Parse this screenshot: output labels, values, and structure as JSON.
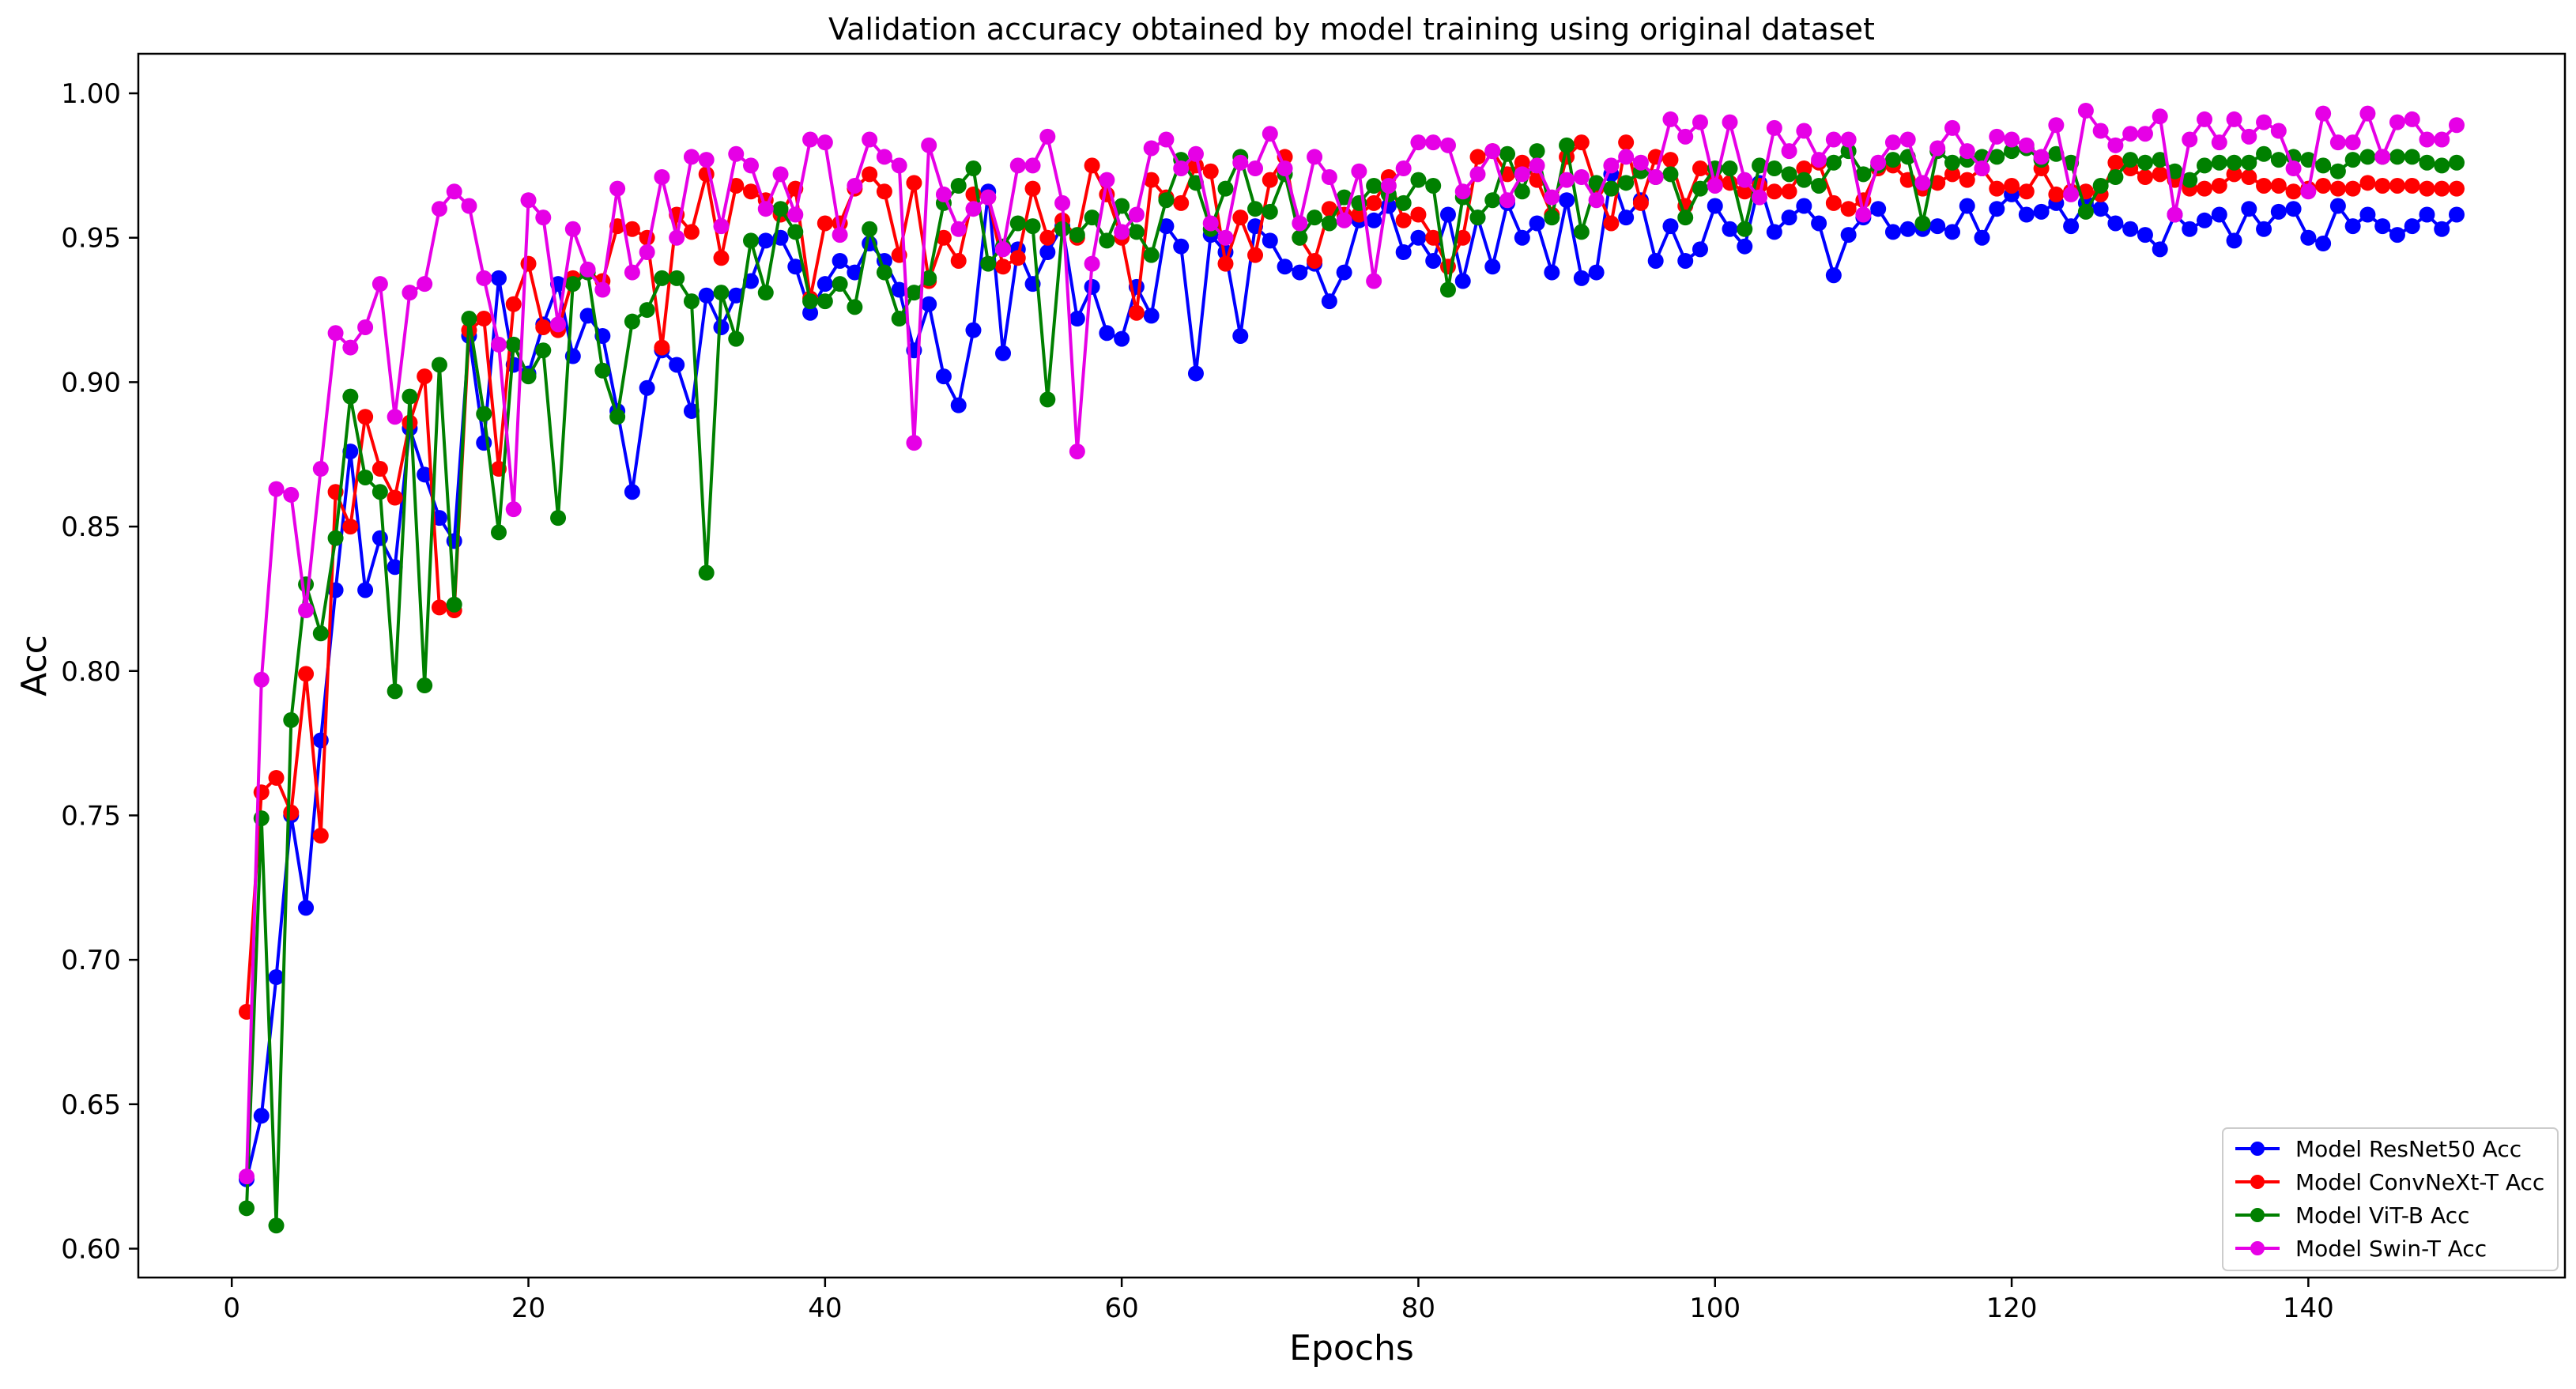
{
  "chart_data": {
    "type": "line",
    "title": "Validation accuracy obtained by model training using original dataset",
    "xlabel": "Epochs",
    "ylabel": "Acc",
    "xlim": [
      -6.3,
      157.3
    ],
    "ylim": [
      0.59,
      1.0137
    ],
    "x_ticks": [
      0,
      20,
      40,
      60,
      80,
      100,
      120,
      140
    ],
    "x_tick_labels": [
      "0",
      "20",
      "40",
      "60",
      "80",
      "100",
      "120",
      "140"
    ],
    "y_ticks": [
      0.6,
      0.65,
      0.7,
      0.75,
      0.8,
      0.85,
      0.9,
      0.95,
      1.0
    ],
    "y_tick_labels": [
      "0.60",
      "0.65",
      "0.70",
      "0.75",
      "0.80",
      "0.85",
      "0.90",
      "0.95",
      "1.00"
    ],
    "grid": false,
    "legend_position": "bottom-right",
    "x_start": 1,
    "series": [
      {
        "name": "Model ResNet50  Acc",
        "color": "#0000ff",
        "values": [
          0.624,
          0.646,
          0.694,
          0.75,
          0.718,
          0.776,
          0.828,
          0.876,
          0.828,
          0.846,
          0.836,
          0.884,
          0.868,
          0.853,
          0.845,
          0.916,
          0.879,
          0.936,
          0.906,
          0.903,
          0.92,
          0.934,
          0.909,
          0.923,
          0.916,
          0.89,
          0.862,
          0.898,
          0.911,
          0.906,
          0.89,
          0.93,
          0.919,
          0.93,
          0.935,
          0.949,
          0.95,
          0.94,
          0.924,
          0.934,
          0.942,
          0.938,
          0.948,
          0.942,
          0.932,
          0.911,
          0.927,
          0.902,
          0.892,
          0.918,
          0.966,
          0.91,
          0.946,
          0.934,
          0.945,
          0.954,
          0.922,
          0.933,
          0.917,
          0.915,
          0.933,
          0.923,
          0.954,
          0.947,
          0.903,
          0.951,
          0.945,
          0.916,
          0.954,
          0.949,
          0.94,
          0.938,
          0.941,
          0.928,
          0.938,
          0.956,
          0.956,
          0.961,
          0.945,
          0.95,
          0.942,
          0.958,
          0.935,
          0.957,
          0.94,
          0.962,
          0.95,
          0.955,
          0.938,
          0.963,
          0.936,
          0.938,
          0.972,
          0.957,
          0.963,
          0.942,
          0.954,
          0.942,
          0.946,
          0.961,
          0.953,
          0.947,
          0.969,
          0.952,
          0.957,
          0.961,
          0.955,
          0.937,
          0.951,
          0.957,
          0.96,
          0.952,
          0.953,
          0.953,
          0.954,
          0.952,
          0.961,
          0.95,
          0.96,
          0.965,
          0.958,
          0.959,
          0.962,
          0.954,
          0.962,
          0.96,
          0.955,
          0.953,
          0.951,
          0.946,
          0.958,
          0.953,
          0.956,
          0.958,
          0.949,
          0.96,
          0.953,
          0.959,
          0.96,
          0.95,
          0.948,
          0.961,
          0.954,
          0.958,
          0.954,
          0.951,
          0.954,
          0.958,
          0.953,
          0.958
        ]
      },
      {
        "name": "Model ConvNeXt-T Acc",
        "color": "#ff0000",
        "values": [
          0.682,
          0.758,
          0.763,
          0.751,
          0.799,
          0.743,
          0.862,
          0.85,
          0.888,
          0.87,
          0.86,
          0.886,
          0.902,
          0.822,
          0.821,
          0.918,
          0.922,
          0.87,
          0.927,
          0.941,
          0.919,
          0.918,
          0.936,
          0.938,
          0.935,
          0.954,
          0.953,
          0.95,
          0.912,
          0.958,
          0.952,
          0.972,
          0.943,
          0.968,
          0.966,
          0.963,
          0.958,
          0.967,
          0.929,
          0.955,
          0.955,
          0.967,
          0.972,
          0.966,
          0.944,
          0.969,
          0.935,
          0.95,
          0.942,
          0.965,
          0.964,
          0.94,
          0.943,
          0.967,
          0.95,
          0.956,
          0.95,
          0.975,
          0.965,
          0.95,
          0.924,
          0.97,
          0.964,
          0.962,
          0.975,
          0.973,
          0.941,
          0.957,
          0.944,
          0.97,
          0.978,
          0.95,
          0.942,
          0.96,
          0.958,
          0.958,
          0.962,
          0.971,
          0.956,
          0.958,
          0.95,
          0.94,
          0.95,
          0.978,
          0.98,
          0.972,
          0.976,
          0.97,
          0.958,
          0.978,
          0.983,
          0.967,
          0.955,
          0.983,
          0.962,
          0.978,
          0.977,
          0.961,
          0.974,
          0.97,
          0.969,
          0.966,
          0.968,
          0.966,
          0.966,
          0.974,
          0.976,
          0.962,
          0.96,
          0.963,
          0.974,
          0.975,
          0.97,
          0.967,
          0.969,
          0.972,
          0.97,
          0.974,
          0.967,
          0.968,
          0.966,
          0.974,
          0.965,
          0.966,
          0.966,
          0.965,
          0.976,
          0.974,
          0.971,
          0.972,
          0.97,
          0.967,
          0.967,
          0.968,
          0.972,
          0.971,
          0.968,
          0.968,
          0.966,
          0.967,
          0.968,
          0.967,
          0.967,
          0.969,
          0.968,
          0.968,
          0.968,
          0.967,
          0.967,
          0.967
        ]
      },
      {
        "name": "Model ViT-B Acc",
        "color": "#008000",
        "values": [
          0.614,
          0.749,
          0.608,
          0.783,
          0.83,
          0.813,
          0.846,
          0.895,
          0.867,
          0.862,
          0.793,
          0.895,
          0.795,
          0.906,
          0.823,
          0.922,
          0.889,
          0.848,
          0.913,
          0.902,
          0.911,
          0.853,
          0.934,
          0.938,
          0.904,
          0.888,
          0.921,
          0.925,
          0.936,
          0.936,
          0.928,
          0.834,
          0.931,
          0.915,
          0.949,
          0.931,
          0.96,
          0.952,
          0.928,
          0.928,
          0.934,
          0.926,
          0.953,
          0.938,
          0.922,
          0.931,
          0.936,
          0.962,
          0.968,
          0.974,
          0.941,
          0.947,
          0.955,
          0.954,
          0.894,
          0.953,
          0.951,
          0.957,
          0.949,
          0.961,
          0.952,
          0.944,
          0.963,
          0.977,
          0.969,
          0.953,
          0.967,
          0.978,
          0.96,
          0.959,
          0.972,
          0.95,
          0.957,
          0.955,
          0.964,
          0.962,
          0.968,
          0.965,
          0.962,
          0.97,
          0.968,
          0.932,
          0.964,
          0.957,
          0.963,
          0.979,
          0.966,
          0.98,
          0.957,
          0.982,
          0.952,
          0.969,
          0.967,
          0.969,
          0.973,
          0.971,
          0.972,
          0.957,
          0.967,
          0.974,
          0.974,
          0.953,
          0.975,
          0.974,
          0.972,
          0.97,
          0.968,
          0.976,
          0.98,
          0.972,
          0.975,
          0.977,
          0.978,
          0.955,
          0.98,
          0.976,
          0.977,
          0.978,
          0.978,
          0.98,
          0.981,
          0.977,
          0.979,
          0.976,
          0.959,
          0.968,
          0.971,
          0.977,
          0.976,
          0.977,
          0.973,
          0.97,
          0.975,
          0.976,
          0.976,
          0.976,
          0.979,
          0.977,
          0.978,
          0.977,
          0.975,
          0.973,
          0.977,
          0.978,
          0.978,
          0.978,
          0.978,
          0.976,
          0.975,
          0.976
        ]
      },
      {
        "name": "Model Swin-T Acc",
        "color": "#e600e6",
        "values": [
          0.625,
          0.797,
          0.863,
          0.861,
          0.821,
          0.87,
          0.917,
          0.912,
          0.919,
          0.934,
          0.888,
          0.931,
          0.934,
          0.96,
          0.966,
          0.961,
          0.936,
          0.913,
          0.856,
          0.963,
          0.957,
          0.92,
          0.953,
          0.939,
          0.932,
          0.967,
          0.938,
          0.945,
          0.971,
          0.95,
          0.978,
          0.977,
          0.954,
          0.979,
          0.975,
          0.96,
          0.972,
          0.958,
          0.984,
          0.983,
          0.951,
          0.968,
          0.984,
          0.978,
          0.975,
          0.879,
          0.982,
          0.965,
          0.953,
          0.96,
          0.964,
          0.946,
          0.975,
          0.975,
          0.985,
          0.962,
          0.876,
          0.941,
          0.97,
          0.952,
          0.958,
          0.981,
          0.984,
          0.974,
          0.979,
          0.955,
          0.95,
          0.976,
          0.974,
          0.986,
          0.974,
          0.955,
          0.978,
          0.971,
          0.956,
          0.973,
          0.935,
          0.968,
          0.974,
          0.983,
          0.983,
          0.982,
          0.966,
          0.972,
          0.98,
          0.963,
          0.972,
          0.975,
          0.964,
          0.97,
          0.971,
          0.963,
          0.975,
          0.978,
          0.976,
          0.971,
          0.991,
          0.985,
          0.99,
          0.968,
          0.99,
          0.97,
          0.964,
          0.988,
          0.98,
          0.987,
          0.977,
          0.984,
          0.984,
          0.958,
          0.976,
          0.983,
          0.984,
          0.969,
          0.981,
          0.988,
          0.98,
          0.974,
          0.985,
          0.984,
          0.982,
          0.978,
          0.989,
          0.965,
          0.994,
          0.987,
          0.982,
          0.986,
          0.986,
          0.992,
          0.958,
          0.984,
          0.991,
          0.983,
          0.991,
          0.985,
          0.99,
          0.987,
          0.974,
          0.966,
          0.993,
          0.983,
          0.983,
          0.993,
          0.978,
          0.99,
          0.991,
          0.984,
          0.984,
          0.989
        ]
      }
    ]
  }
}
